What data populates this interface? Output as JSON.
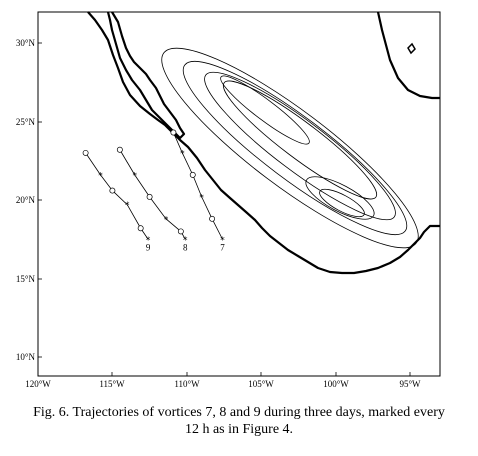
{
  "figure": {
    "type": "map",
    "x_ticks": [
      "120°W",
      "115°W",
      "110°W",
      "105°W",
      "100°W",
      "95°W"
    ],
    "y_ticks": [
      "30°N",
      "25°N",
      "20°N",
      "15°N",
      "10°N"
    ],
    "x_range_lon": [
      -120,
      -93
    ],
    "y_range_lat": [
      8.8,
      32
    ],
    "trajectories": [
      {
        "label": "7",
        "points": [
          [
            -110.9,
            24.3
          ],
          [
            -110.3,
            23.0
          ],
          [
            -109.6,
            21.6
          ],
          [
            -109.0,
            20.2
          ],
          [
            -108.3,
            18.8
          ],
          [
            -107.6,
            17.5
          ]
        ]
      },
      {
        "label": "8",
        "points": [
          [
            -114.5,
            23.2
          ],
          [
            -113.5,
            21.6
          ],
          [
            -112.5,
            20.2
          ],
          [
            -111.4,
            18.8
          ],
          [
            -110.4,
            18.0
          ],
          [
            -110.1,
            17.5
          ]
        ]
      },
      {
        "label": "9",
        "points": [
          [
            -116.8,
            23.0
          ],
          [
            -115.8,
            21.6
          ],
          [
            -115.0,
            20.6
          ],
          [
            -114.0,
            19.7
          ],
          [
            -113.1,
            18.2
          ],
          [
            -112.6,
            17.5
          ]
        ]
      }
    ]
  },
  "caption": {
    "line1": "Fig. 6. Trajectories of vortices 7, 8 and 9 during three days, marked every",
    "line2": "12 h as in Figure 4."
  }
}
